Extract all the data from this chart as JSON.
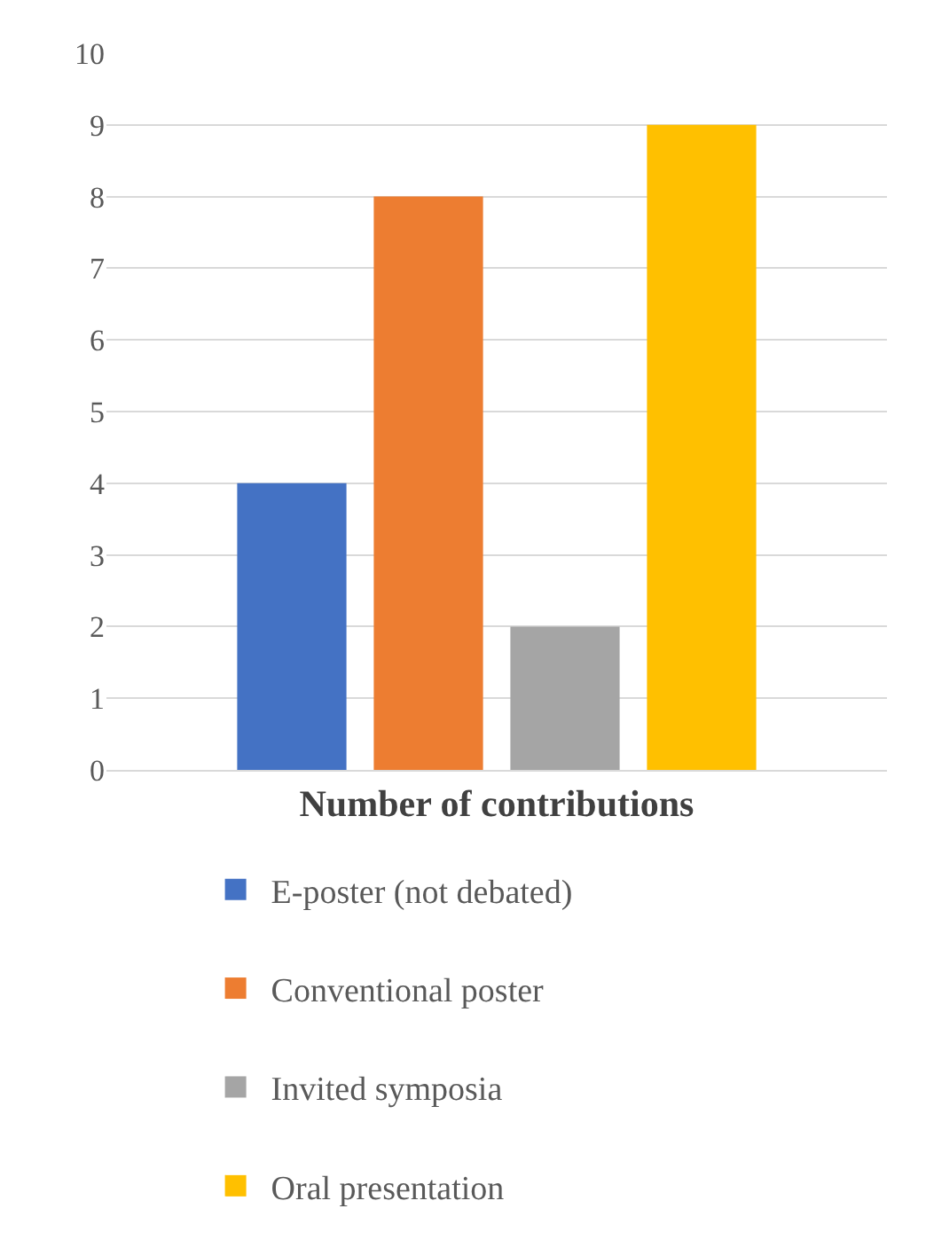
{
  "chart_data": {
    "type": "bar",
    "categories": [
      "Number of contributions"
    ],
    "series": [
      {
        "name": "E-poster (not debated)",
        "color": "#4472c4",
        "values": [
          4
        ]
      },
      {
        "name": "Conventional poster",
        "color": "#ed7d31",
        "values": [
          8
        ]
      },
      {
        "name": "Invited symposia",
        "color": "#a5a5a5",
        "values": [
          2
        ]
      },
      {
        "name": "Oral presentation",
        "color": "#ffc000",
        "values": [
          9
        ]
      }
    ],
    "ylim": [
      0,
      10
    ],
    "yticks": [
      0,
      1,
      2,
      3,
      4,
      5,
      6,
      7,
      8,
      9,
      10
    ],
    "grid": "y",
    "legend": "bottom"
  }
}
